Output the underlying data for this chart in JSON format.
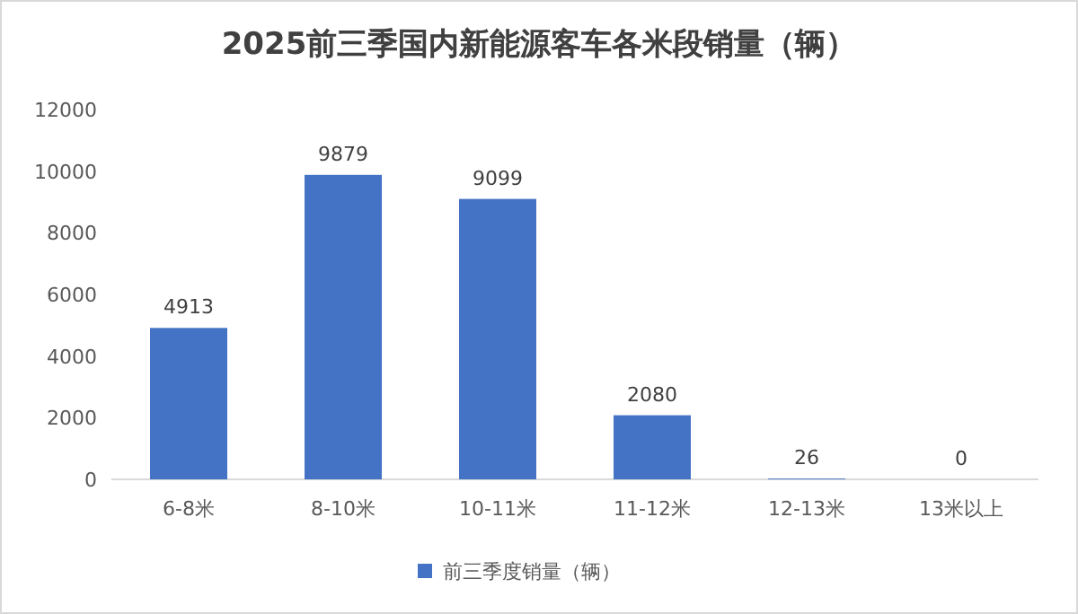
{
  "chart_data": {
    "type": "bar",
    "title": "2025前三季国内新能源客车各米段销量（辆）",
    "categories": [
      "6-8米",
      "8-10米",
      "10-11米",
      "11-12米",
      "12-13米",
      "13米以上"
    ],
    "series": [
      {
        "name": "前三季度销量（辆）",
        "color": "#4472c4",
        "values": [
          4913,
          9879,
          9099,
          2080,
          26,
          0
        ]
      }
    ],
    "ylim": [
      0,
      12000
    ],
    "yticks": [
      0,
      2000,
      4000,
      6000,
      8000,
      10000,
      12000
    ],
    "data_labels": true,
    "legend": "bottom",
    "grid": false
  }
}
